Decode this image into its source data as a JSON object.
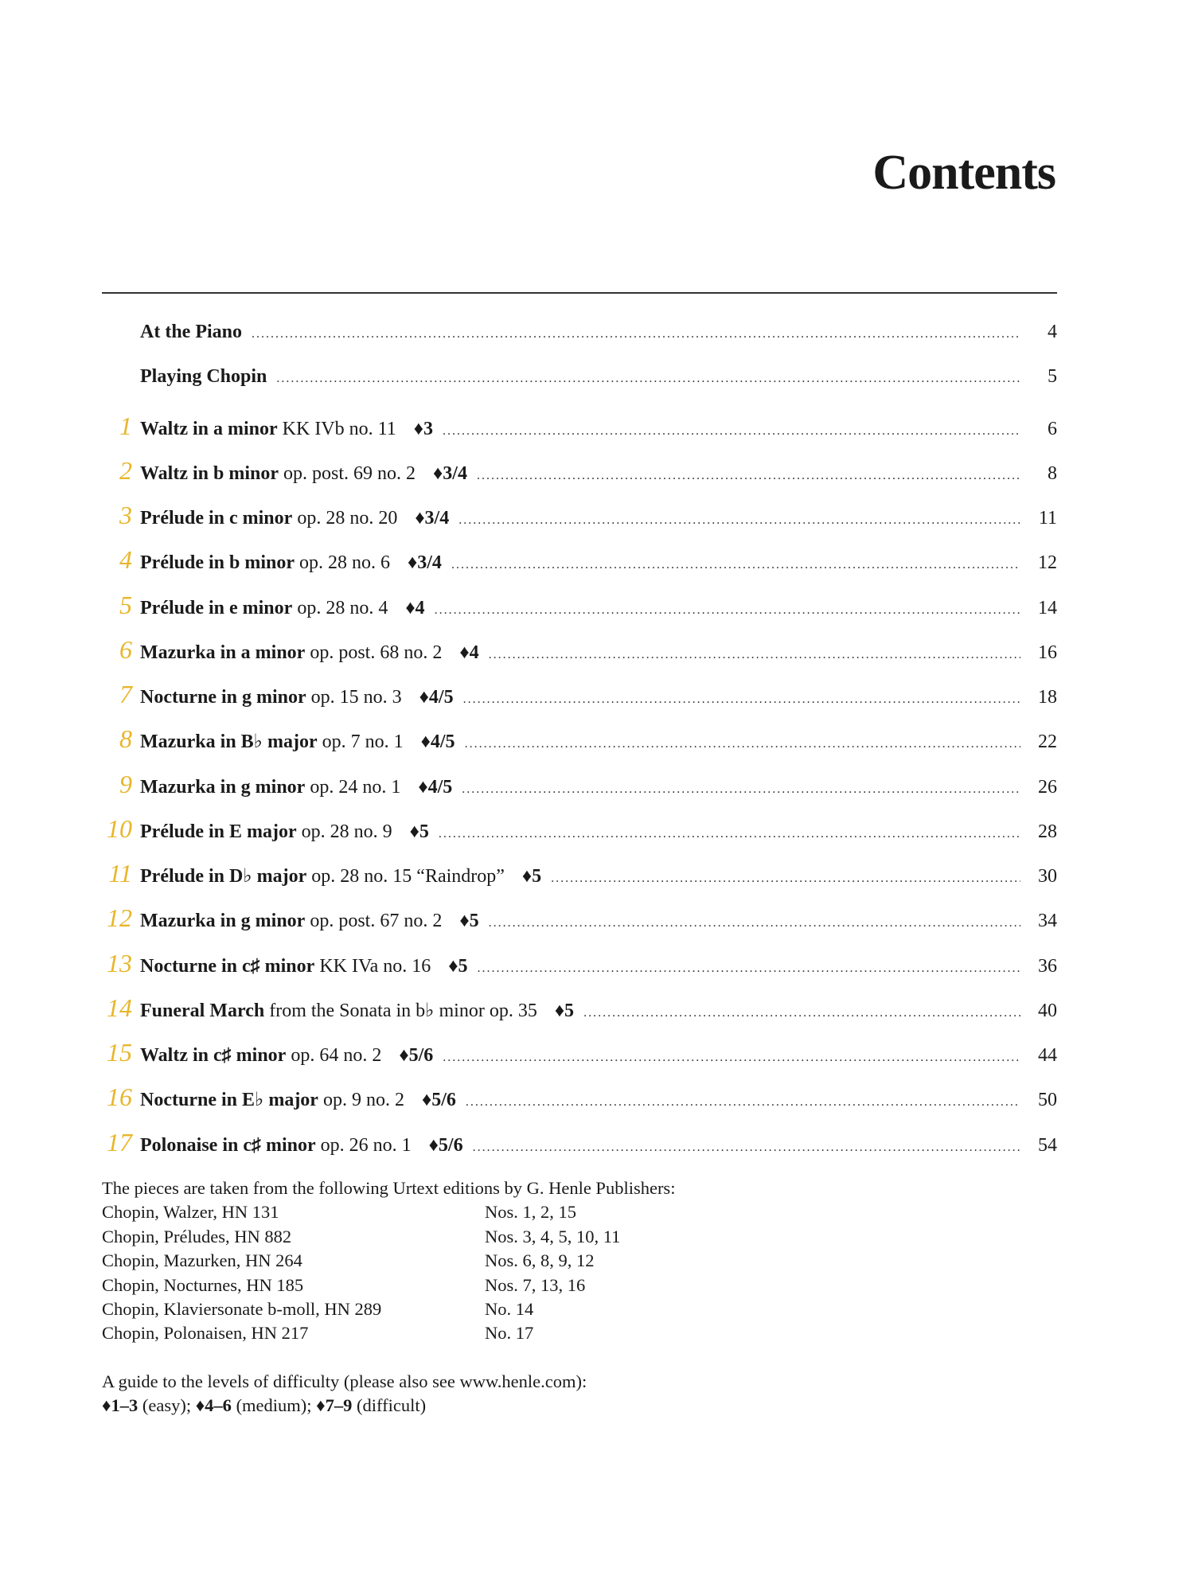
{
  "title": "Contents",
  "diamond": "♦",
  "entries": [
    {
      "num": "",
      "title": "At the Piano",
      "detail": "",
      "level": "",
      "page": "4"
    },
    {
      "num": "",
      "title": "Playing Chopin",
      "detail": "",
      "level": "",
      "page": "5"
    },
    {
      "num": "1",
      "title": "Waltz in a minor",
      "detail": " KK IVb no. 11",
      "level": "♦3",
      "page": "6"
    },
    {
      "num": "2",
      "title": "Waltz in b minor",
      "detail": " op. post. 69 no. 2",
      "level": "♦3/4",
      "page": "8"
    },
    {
      "num": "3",
      "title": "Prélude in c minor",
      "detail": " op. 28 no. 20",
      "level": "♦3/4",
      "page": "11"
    },
    {
      "num": "4",
      "title": "Prélude in b minor",
      "detail": " op. 28 no. 6",
      "level": "♦3/4",
      "page": "12"
    },
    {
      "num": "5",
      "title": "Prélude in e minor",
      "detail": " op. 28 no. 4",
      "level": "♦4",
      "page": "14"
    },
    {
      "num": "6",
      "title": "Mazurka in a minor",
      "detail": " op. post. 68 no. 2",
      "level": "♦4",
      "page": "16"
    },
    {
      "num": "7",
      "title": "Nocturne in g minor",
      "detail": " op. 15 no. 3",
      "level": "♦4/5",
      "page": "18"
    },
    {
      "num": "8",
      "title": "Mazurka in B♭ major",
      "detail": " op. 7 no. 1",
      "level": "♦4/5",
      "page": "22"
    },
    {
      "num": "9",
      "title": "Mazurka in g minor",
      "detail": " op. 24 no. 1",
      "level": "♦4/5",
      "page": "26"
    },
    {
      "num": "10",
      "title": "Prélude in E major",
      "detail": " op. 28 no. 9",
      "level": "♦5",
      "page": "28"
    },
    {
      "num": "11",
      "title": "Prélude in D♭ major",
      "detail": " op. 28 no. 15 “Raindrop”",
      "level": "♦5",
      "page": "30"
    },
    {
      "num": "12",
      "title": "Mazurka in g minor",
      "detail": " op. post. 67 no. 2",
      "level": "♦5",
      "page": "34"
    },
    {
      "num": "13",
      "title": "Nocturne in c♯ minor",
      "detail": " KK IVa no. 16",
      "level": "♦5",
      "page": "36"
    },
    {
      "num": "14",
      "title": "Funeral March",
      "detail": " from the Sonata in b♭ minor op. 35",
      "level": "♦5",
      "page": "40"
    },
    {
      "num": "15",
      "title": "Waltz in c♯ minor",
      "detail": " op. 64 no. 2",
      "level": "♦5/6",
      "page": "44"
    },
    {
      "num": "16",
      "title": "Nocturne in E♭ major",
      "detail": " op. 9 no. 2",
      "level": "♦5/6",
      "page": "50"
    },
    {
      "num": "17",
      "title": "Polonaise in c♯ minor",
      "detail": " op. 26 no. 1",
      "level": "♦5/6",
      "page": "54"
    }
  ],
  "sources": {
    "intro": "The pieces are taken from the following Urtext editions by G. Henle Publishers:",
    "editions": [
      {
        "edition": "Chopin, Walzer, HN 131",
        "pieces": "Nos. 1, 2, 15"
      },
      {
        "edition": "Chopin, Préludes, HN 882",
        "pieces": "Nos. 3, 4, 5, 10, 11"
      },
      {
        "edition": "Chopin, Mazurken, HN 264",
        "pieces": "Nos. 6, 8, 9, 12"
      },
      {
        "edition": "Chopin, Nocturnes, HN 185",
        "pieces": "Nos. 7, 13, 16"
      },
      {
        "edition": "Chopin, Klaviersonate b-moll, HN 289",
        "pieces": "No. 14"
      },
      {
        "edition": "Chopin, Polonaisen, HN 217",
        "pieces": "No. 17"
      }
    ]
  },
  "guide": {
    "intro": "A guide to the levels of difficulty (please also see www.henle.com):",
    "levels": [
      {
        "range": "♦1–3",
        "label": " (easy); "
      },
      {
        "range": "♦4–6",
        "label": " (medium); "
      },
      {
        "range": "♦7–9",
        "label": " (difficult)"
      }
    ]
  },
  "colors": {
    "accent": "#e8b62a",
    "text": "#1a1a1a"
  }
}
